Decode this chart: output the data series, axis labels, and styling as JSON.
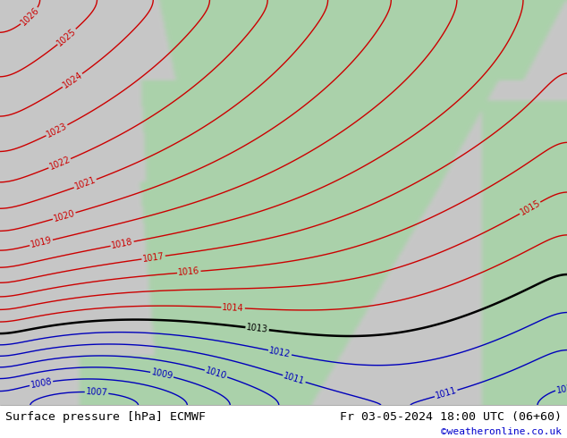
{
  "title_left": "Surface pressure [hPa] ECMWF",
  "title_right": "Fr 03-05-2024 18:00 UTC (06+60)",
  "watermark": "©weatheronline.co.uk",
  "bg_sea_color": "#c8c8c8",
  "bg_land_color": "#a8cca8",
  "border_color": "#111111",
  "isobar_red_color": "#cc0000",
  "isobar_blue_color": "#0000bb",
  "isobar_black_color": "#000000",
  "label_fontsize": 7.0,
  "footer_fontsize": 9.5,
  "watermark_fontsize": 8,
  "figsize": [
    6.34,
    4.9
  ],
  "dpi": 100
}
